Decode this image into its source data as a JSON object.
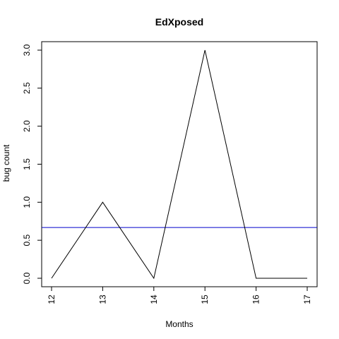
{
  "chart_data": {
    "type": "line",
    "title": "EdXposed",
    "xlabel": "Months",
    "ylabel": "bug count",
    "x": [
      12,
      13,
      14,
      15,
      16,
      17
    ],
    "y": [
      0,
      1,
      0,
      3,
      0,
      0
    ],
    "x_ticks": [
      "12",
      "13",
      "14",
      "15",
      "16",
      "17"
    ],
    "y_ticks": [
      "0.0",
      "0.5",
      "1.0",
      "1.5",
      "2.0",
      "2.5",
      "3.0"
    ],
    "xlim": [
      12,
      17
    ],
    "ylim": [
      0,
      3
    ],
    "reference_line": {
      "y": 0.667,
      "color": "#0000cc"
    },
    "line_color": "#000000",
    "grid": false,
    "legend": "none"
  }
}
